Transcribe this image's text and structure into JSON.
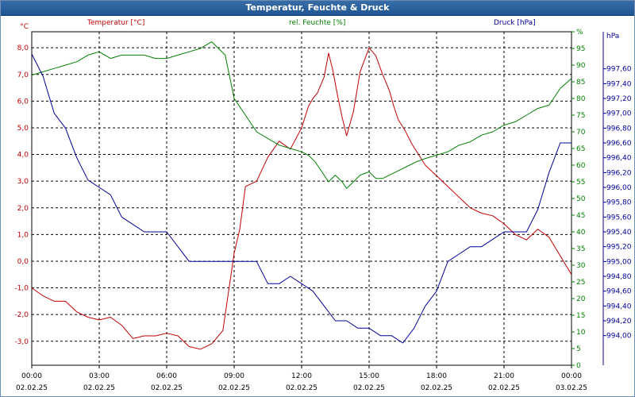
{
  "window": {
    "title": "Temperatur, Feuchte & Druck"
  },
  "colors": {
    "temperature": "#c00000",
    "humidity": "#008000",
    "pressure": "#000099",
    "titlebar": "#2a5f9e",
    "grid": "#000000"
  },
  "chart_data": {
    "type": "line",
    "title": "Temperatur, Feuchte & Druck",
    "grid": true,
    "x_ticks": [
      {
        "time": "00:00",
        "date": "02.02.25"
      },
      {
        "time": "03:00",
        "date": "02.02.25"
      },
      {
        "time": "06:00",
        "date": "02.02.25"
      },
      {
        "time": "09:00",
        "date": "02.02.25"
      },
      {
        "time": "12:00",
        "date": "02.02.25"
      },
      {
        "time": "15:00",
        "date": "02.02.25"
      },
      {
        "time": "18:00",
        "date": "02.02.25"
      },
      {
        "time": "21:00",
        "date": "02.02.25"
      },
      {
        "time": "00:00",
        "date": "03.02.25"
      }
    ],
    "x_unit": "hours",
    "xlim": [
      0,
      24
    ],
    "axes": {
      "temperature": {
        "label": "Temperatur [°C]",
        "unit": "°C",
        "ylim": [
          -3.9,
          8.6
        ],
        "ticks": [
          "8,0",
          "7,0",
          "6,0",
          "5,0",
          "4,0",
          "3,0",
          "2,0",
          "1,0",
          "0,0",
          "-1,0",
          "-2,0",
          "-3,0"
        ],
        "tick_values": [
          8,
          7,
          6,
          5,
          4,
          3,
          2,
          1,
          0,
          -1,
          -2,
          -3
        ]
      },
      "humidity": {
        "label": "rel. Feuchte [%]",
        "unit": "%",
        "ylim": [
          0,
          100
        ],
        "ticks": [
          "%",
          "95",
          "90",
          "85",
          "80",
          "75",
          "70",
          "65",
          "60",
          "55",
          "50",
          "45",
          "40",
          "35",
          "30",
          "25",
          "20",
          "15",
          "10",
          "5",
          "0"
        ],
        "tick_values": [
          100,
          95,
          90,
          85,
          80,
          75,
          70,
          65,
          60,
          55,
          50,
          45,
          40,
          35,
          30,
          25,
          20,
          15,
          10,
          5,
          0
        ]
      },
      "pressure": {
        "label": "Druck [hPa]",
        "unit": "hPa",
        "ylim": [
          993.6,
          998.1
        ],
        "ticks": [
          "997,60",
          "997,40",
          "997,20",
          "997,00",
          "996,80",
          "996,60",
          "996,40",
          "996,20",
          "996,00",
          "995,80",
          "995,60",
          "995,40",
          "995,20",
          "995,00",
          "994,80",
          "994,60",
          "994,40",
          "994,20",
          "994,00"
        ],
        "tick_values": [
          997.6,
          997.4,
          997.2,
          997.0,
          996.8,
          996.6,
          996.4,
          996.2,
          996.0,
          995.8,
          995.6,
          995.4,
          995.2,
          995.0,
          994.8,
          994.6,
          994.4,
          994.2,
          994.0
        ]
      }
    },
    "series": [
      {
        "name": "Temperatur [°C]",
        "axis": "temperature",
        "color": "#c00000",
        "x": [
          0,
          0.5,
          1,
          1.5,
          2,
          2.5,
          3,
          3.5,
          4,
          4.5,
          5,
          5.5,
          6,
          6.5,
          7,
          7.5,
          8,
          8.5,
          9,
          9.25,
          9.5,
          10,
          10.5,
          11,
          11.5,
          12,
          12.3,
          12.5,
          12.7,
          13,
          13.2,
          13.4,
          13.6,
          13.8,
          14,
          14.3,
          14.6,
          15,
          15.3,
          15.6,
          15.9,
          16.1,
          16.3,
          16.6,
          16.9,
          17.2,
          17.5,
          18,
          18.5,
          19,
          19.5,
          20,
          20.5,
          21,
          21.5,
          22,
          22.5,
          23,
          23.5,
          24
        ],
        "y": [
          -1.0,
          -1.3,
          -1.5,
          -1.5,
          -1.9,
          -2.1,
          -2.2,
          -2.1,
          -2.4,
          -2.9,
          -2.8,
          -2.8,
          -2.7,
          -2.8,
          -3.2,
          -3.3,
          -3.1,
          -2.6,
          0.3,
          1.2,
          2.8,
          3.0,
          3.9,
          4.5,
          4.2,
          5.0,
          5.8,
          6.1,
          6.3,
          6.9,
          7.8,
          7.1,
          6.2,
          5.4,
          4.7,
          5.6,
          7.1,
          8.0,
          7.7,
          7.0,
          6.4,
          5.8,
          5.3,
          4.9,
          4.4,
          4.0,
          3.6,
          3.2,
          2.8,
          2.4,
          2.0,
          1.8,
          1.7,
          1.4,
          1.0,
          0.8,
          1.2,
          0.9,
          0.2,
          -0.5
        ]
      },
      {
        "name": "rel. Feuchte [%]",
        "axis": "humidity",
        "color": "#008000",
        "x": [
          0,
          0.5,
          1,
          1.5,
          2,
          2.5,
          3,
          3.5,
          4,
          4.5,
          5,
          5.5,
          6,
          6.5,
          7,
          7.5,
          8,
          8.3,
          8.6,
          9,
          9.5,
          10,
          10.5,
          11,
          11.5,
          12,
          12.3,
          12.6,
          12.9,
          13.2,
          13.5,
          13.8,
          14,
          14.3,
          14.6,
          15,
          15.3,
          15.6,
          15.9,
          16.2,
          16.5,
          16.8,
          17.1,
          17.5,
          18,
          18.5,
          19,
          19.5,
          20,
          20.5,
          21,
          21.5,
          22,
          22.5,
          23,
          23.5,
          24
        ],
        "y": [
          87,
          88,
          89,
          90,
          91,
          93,
          94,
          92,
          93,
          93,
          93,
          92,
          92,
          93,
          94,
          95,
          97,
          95,
          93,
          80,
          75,
          70,
          68,
          66,
          65,
          64,
          63,
          61,
          58,
          55,
          57,
          55,
          53,
          55,
          57,
          58,
          56,
          56,
          57,
          58,
          59,
          60,
          61,
          62,
          63,
          64,
          66,
          67,
          69,
          70,
          72,
          73,
          75,
          77,
          78,
          83,
          86
        ]
      },
      {
        "name": "Druck [hPa]",
        "axis": "pressure",
        "color": "#000099",
        "x": [
          0,
          0.5,
          1,
          1.5,
          2,
          2.5,
          3,
          3.5,
          4,
          4.5,
          5,
          5.5,
          6,
          6.5,
          7,
          7.5,
          8,
          8.5,
          9,
          9.5,
          10,
          10.5,
          11,
          11.5,
          12,
          12.5,
          13,
          13.5,
          14,
          14.5,
          15,
          15.5,
          16,
          16.5,
          17,
          17.5,
          18,
          18.5,
          19,
          19.5,
          20,
          20.5,
          21,
          21.5,
          22,
          22.5,
          23,
          23.5,
          24
        ],
        "y": [
          997.8,
          997.5,
          997.0,
          996.8,
          996.4,
          996.1,
          996.0,
          995.9,
          995.6,
          995.5,
          995.4,
          995.4,
          995.4,
          995.2,
          995.0,
          995.0,
          995.0,
          995.0,
          995.0,
          995.0,
          995.0,
          994.7,
          994.7,
          994.8,
          994.7,
          994.6,
          994.4,
          994.2,
          994.2,
          994.1,
          994.1,
          994.0,
          994.0,
          993.9,
          994.1,
          994.4,
          994.6,
          995.0,
          995.1,
          995.2,
          995.2,
          995.3,
          995.4,
          995.4,
          995.4,
          995.7,
          996.2,
          996.6,
          996.6
        ]
      }
    ]
  }
}
